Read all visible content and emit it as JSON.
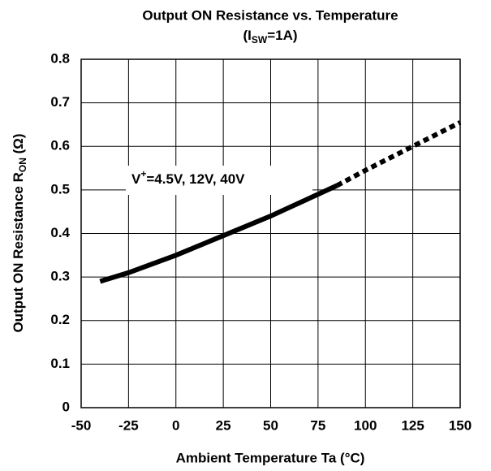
{
  "chart_data": {
    "type": "line",
    "title": "Output ON Resistance vs. Temperature",
    "subtitle": {
      "main": "(I",
      "sub": "SW",
      "rest": "=1A)"
    },
    "x_label": "Ambient Temperature  Ta  (°C)",
    "y_label": {
      "main": "Output ON Resistance  R",
      "sub": "ON",
      "rest": "  (Ω)"
    },
    "annotation": {
      "main": "V",
      "sup": "+",
      "rest": "=4.5V, 12V, 40V"
    },
    "series": [
      {
        "color": "#000000",
        "dashed": false,
        "x": [
          -40,
          -25,
          0,
          25,
          50,
          75,
          85
        ],
        "values": [
          0.29,
          0.31,
          0.35,
          0.395,
          0.44,
          0.49,
          0.51
        ]
      },
      {
        "color": "#000000",
        "dashed": true,
        "x": [
          85,
          100,
          125,
          150
        ],
        "values": [
          0.51,
          0.545,
          0.6,
          0.655
        ]
      }
    ],
    "xlim": [
      -50,
      150
    ],
    "xticks": [
      -50,
      -25,
      0,
      25,
      50,
      75,
      100,
      125,
      150
    ],
    "ylim": [
      0,
      0.8
    ],
    "yticks": [
      0,
      0.1,
      0.2,
      0.3,
      0.4,
      0.5,
      0.6,
      0.7,
      0.8
    ],
    "grid": true
  }
}
